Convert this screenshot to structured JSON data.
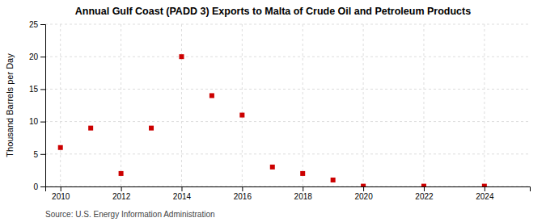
{
  "chart_data": {
    "type": "scatter",
    "title": "Annual Gulf Coast (PADD 3) Exports to Malta of Crude Oil and Petroleum Products",
    "ylabel": "Thousand Barrels per Day",
    "annotations": [
      "Source: U.S. Energy Information Administration"
    ],
    "x": [
      2010,
      2011,
      2012,
      2013,
      2014,
      2015,
      2016,
      2017,
      2018,
      2019,
      2020,
      2022,
      2024
    ],
    "values": [
      6.0,
      9.0,
      2.0,
      9.0,
      20.0,
      14.0,
      11.0,
      3.0,
      2.0,
      1.0,
      0.05,
      0.05,
      0.05
    ],
    "color": "#cc0000",
    "marker": "square",
    "xlim": [
      2009.5,
      2025.5
    ],
    "ylim": [
      0,
      25
    ],
    "xticks": [
      2010,
      2012,
      2014,
      2016,
      2018,
      2020,
      2022,
      2024
    ],
    "yticks": [
      0,
      5,
      10,
      15,
      20,
      25
    ],
    "grid": true
  }
}
